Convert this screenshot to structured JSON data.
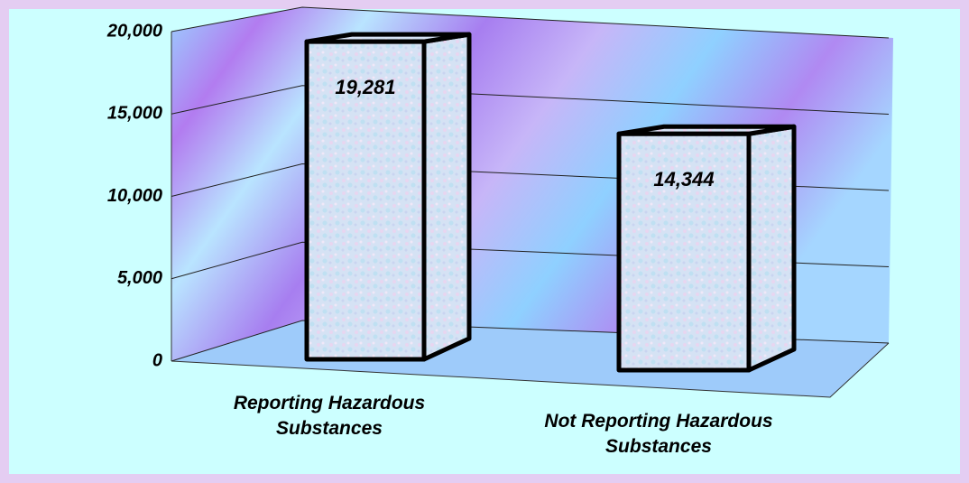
{
  "chart_data": {
    "type": "bar3d",
    "categories": [
      "Reporting Hazardous Substances",
      "Not Reporting Hazardous Substances"
    ],
    "values": [
      19281,
      14344
    ],
    "value_labels": [
      "19,281",
      "14,344"
    ],
    "ylim": [
      0,
      20000
    ],
    "yticks": [
      0,
      {
        "value": 5000,
        "label": "5,000"
      },
      {
        "value": 10000,
        "label": "10,000"
      },
      {
        "value": 15000,
        "label": "15,000"
      },
      {
        "value": 20000,
        "label": "20,000"
      }
    ],
    "grid": true
  }
}
